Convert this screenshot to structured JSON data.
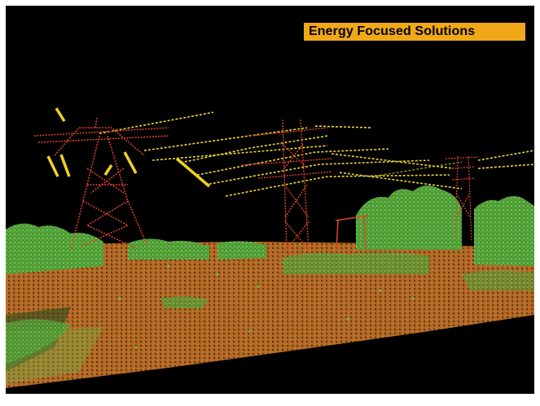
{
  "banner": {
    "text": "Energy Focused Solutions",
    "background_color": "#f0a817",
    "text_color": "#000000"
  },
  "scene": {
    "subject": "lidar point cloud of transmission towers over vegetation and ground",
    "colors": {
      "background": "#000000",
      "towers": "#e0442a",
      "wires": "#e8d23a",
      "vegetation": "#6cc04a",
      "ground": "#c77a2e"
    }
  }
}
